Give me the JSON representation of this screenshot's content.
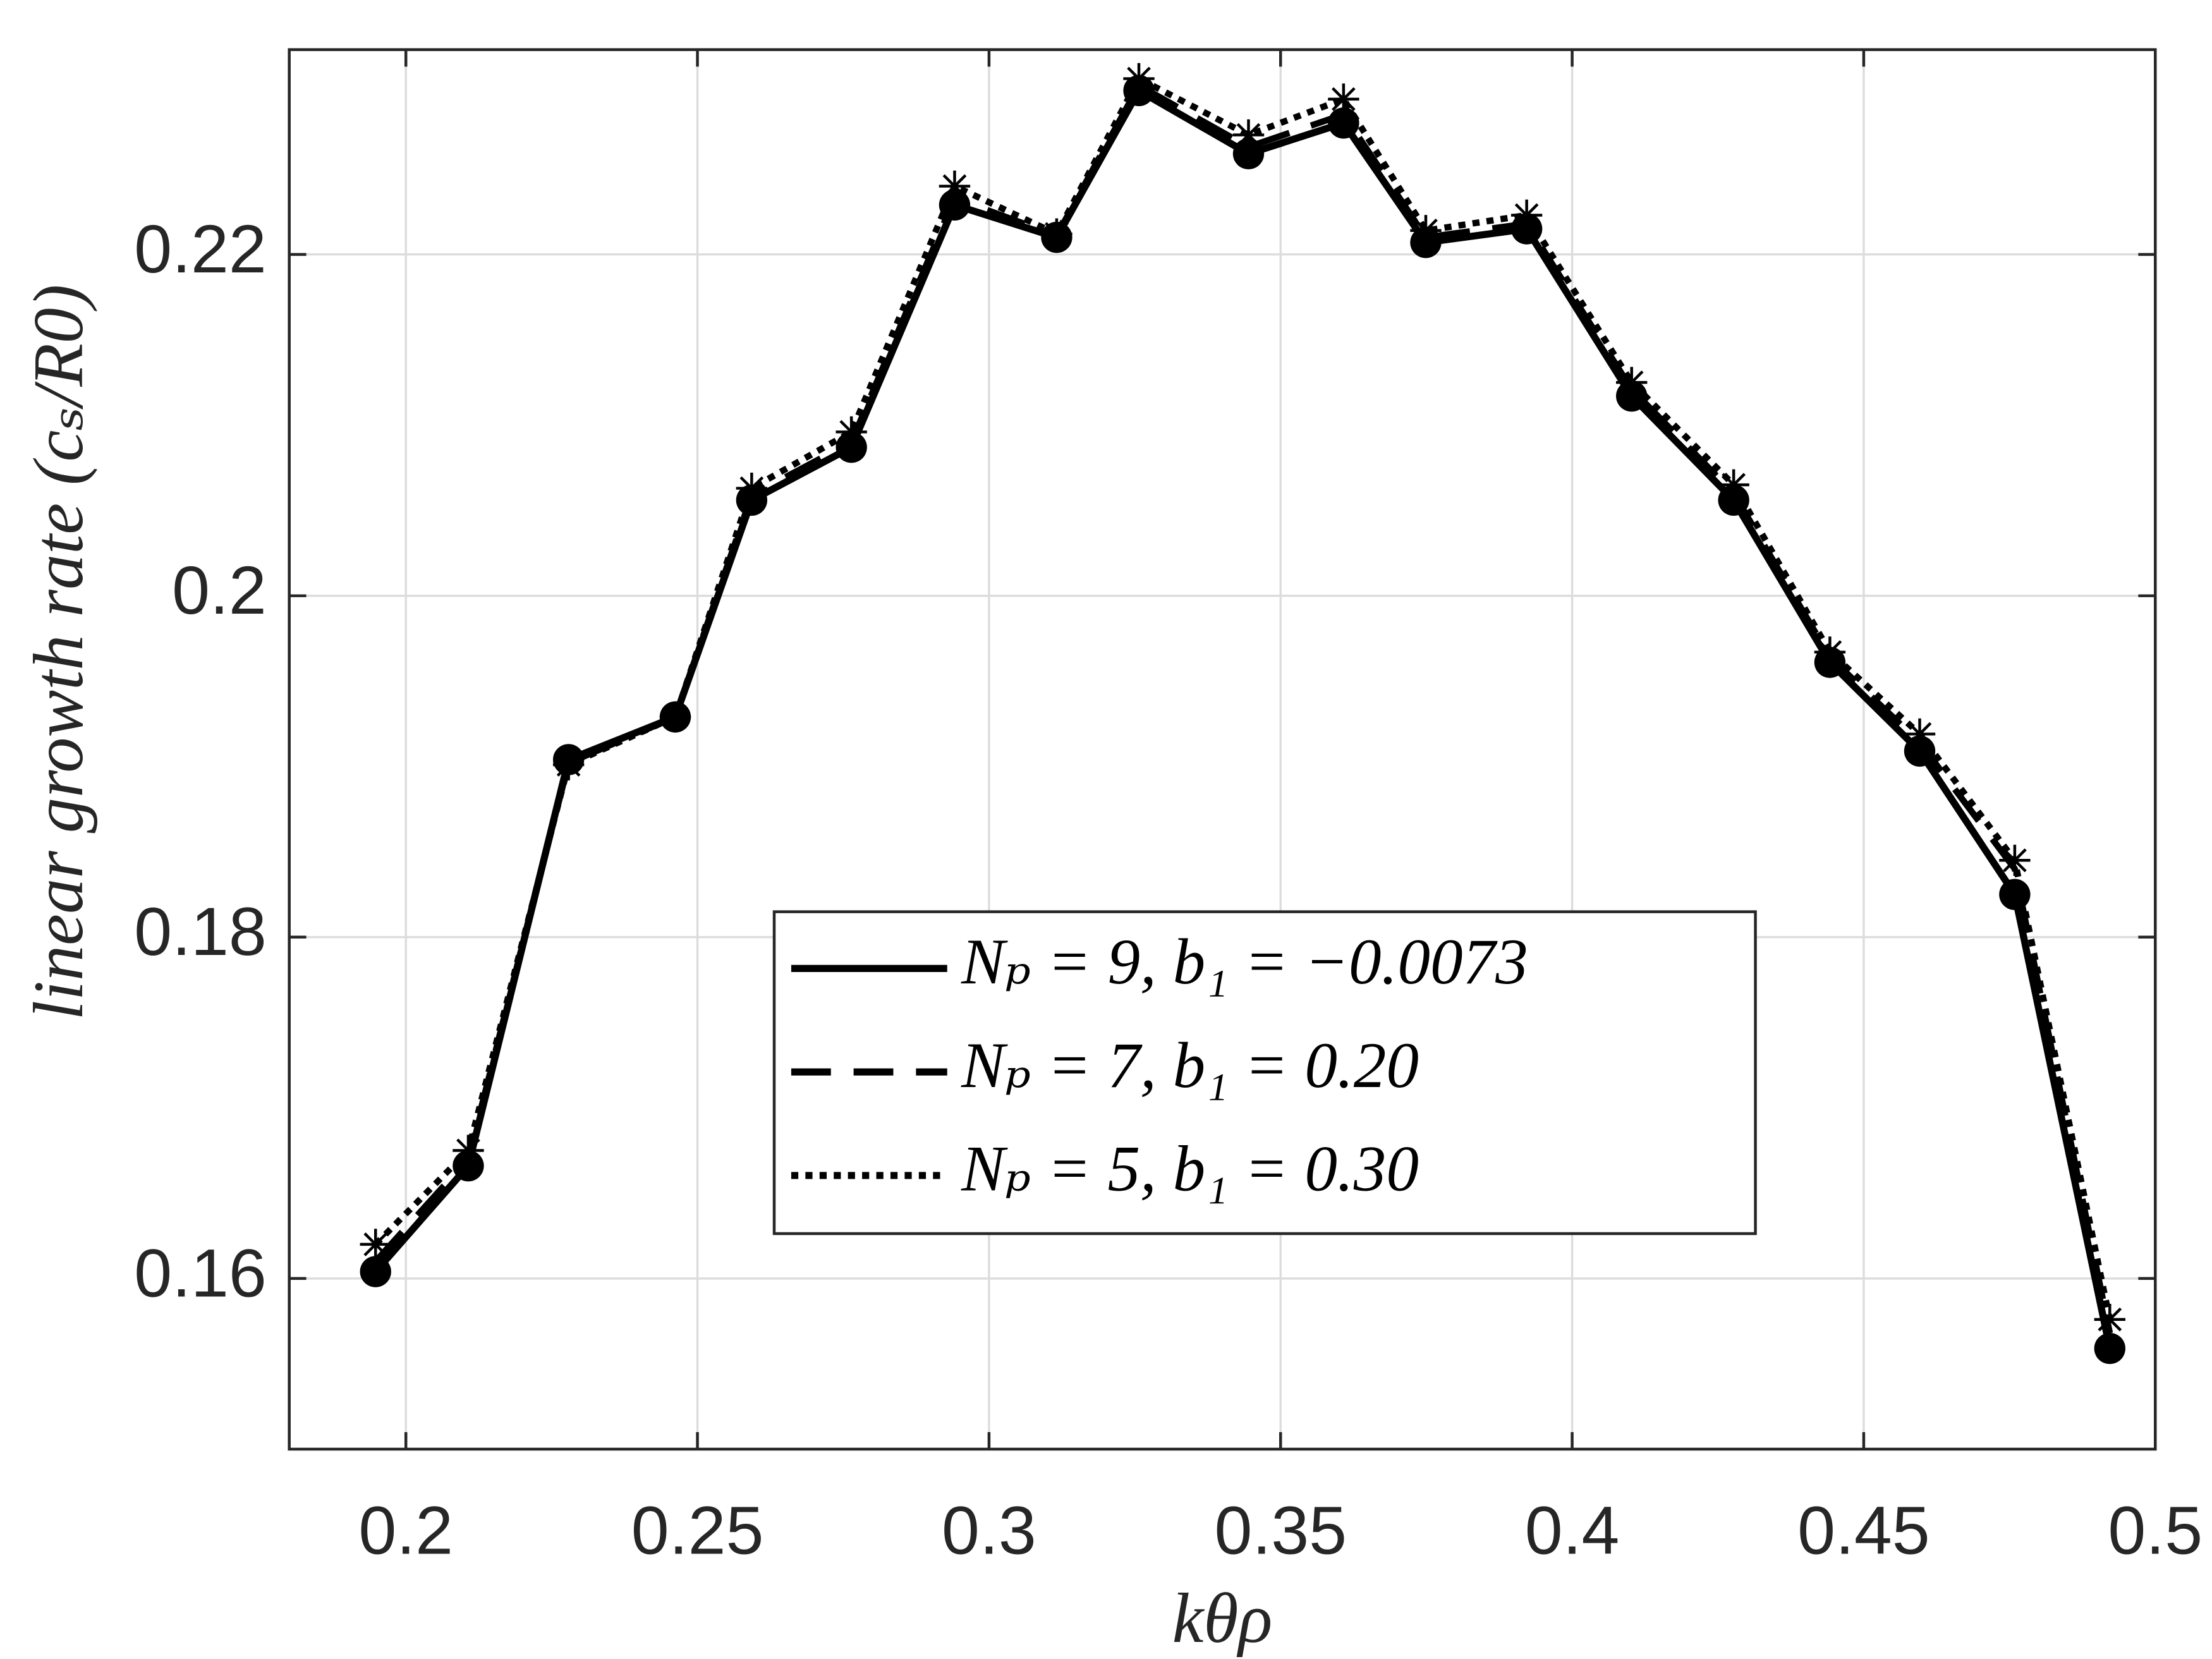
{
  "chart_data": {
    "type": "line",
    "xlabel": "kθρ",
    "ylabel": "linear growth rate (cₛ/R0)",
    "x": [
      0.1948,
      0.2107,
      0.2279,
      0.2462,
      0.2593,
      0.2764,
      0.2941,
      0.3116,
      0.3257,
      0.3445,
      0.3608,
      0.3749,
      0.3922,
      0.4102,
      0.4277,
      0.4442,
      0.4596,
      0.4759,
      0.4922
    ],
    "series": [
      {
        "name": "Nₚ = 9, b₁ = −0.0073",
        "color": "#000000",
        "style": "solid",
        "marker": "circle",
        "values": [
          0.1604,
          0.1666,
          0.1904,
          0.1929,
          0.2056,
          0.2087,
          0.2229,
          0.221,
          0.2296,
          0.2259,
          0.2277,
          0.2207,
          0.2215,
          0.2117,
          0.2056,
          0.1961,
          0.1909,
          0.1825,
          0.1559
        ]
      },
      {
        "name": "Nₚ = 7, b₁ = 0.20",
        "color": "#000000",
        "style": "dashed",
        "marker": "none",
        "values": [
          0.161,
          0.167,
          0.1902,
          0.1929,
          0.2059,
          0.209,
          0.2233,
          0.2211,
          0.2299,
          0.2263,
          0.2282,
          0.221,
          0.2218,
          0.2121,
          0.206,
          0.1964,
          0.1914,
          0.184,
          0.1568
        ]
      },
      {
        "name": "Nₚ = 5, b₁ = 0.30",
        "color": "#000000",
        "style": "dotted",
        "marker": "star",
        "values": [
          0.162,
          0.1675,
          0.1901,
          0.1929,
          0.2063,
          0.2096,
          0.224,
          0.2212,
          0.2303,
          0.227,
          0.2291,
          0.2214,
          0.2223,
          0.2125,
          0.2065,
          0.1967,
          0.1919,
          0.1845,
          0.1576
        ]
      }
    ],
    "xlim": [
      0.18,
      0.5
    ],
    "xticks": [
      0.2,
      0.25,
      0.3,
      0.35,
      0.4,
      0.45,
      0.5
    ],
    "ylim": [
      0.15,
      0.232
    ],
    "yticks": [
      0.16,
      0.18,
      0.2,
      0.22
    ],
    "grid": true,
    "legend": "lower center"
  }
}
